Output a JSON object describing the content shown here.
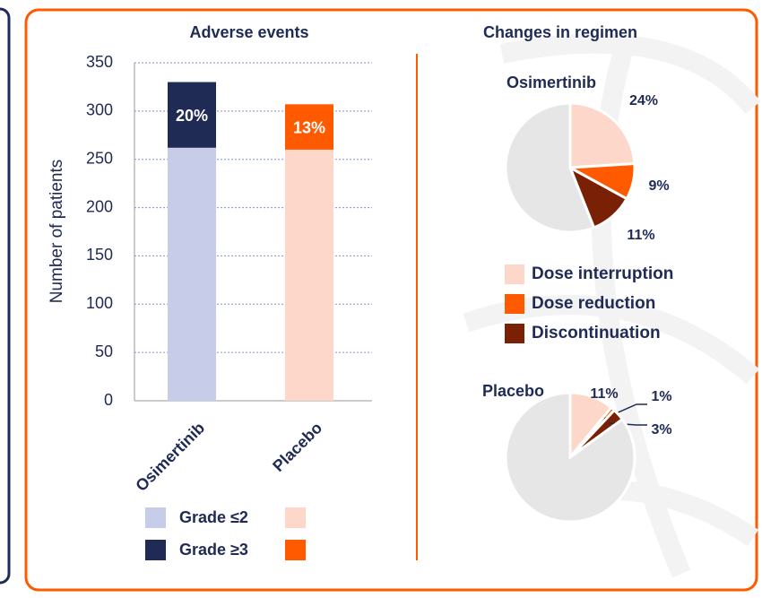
{
  "regimen_heading": "Changes in regimen",
  "chart_data": [
    {
      "type": "bar",
      "stacked": true,
      "title": "Adverse events",
      "y_label": "Number of patients",
      "categories": [
        "Osimertinib",
        "Placebo"
      ],
      "series": [
        {
          "name": "Grade ≤2",
          "colors": [
            "#c7cce8",
            "#fdd8ca"
          ],
          "values": [
            262,
            260
          ]
        },
        {
          "name": "Grade ≥3",
          "colors": [
            "#1f2a55",
            "#ff5a00"
          ],
          "values": [
            68,
            47
          ],
          "annotations": [
            "20%",
            "13%"
          ]
        }
      ],
      "ylim": [
        0,
        350
      ],
      "yticks": [
        0,
        50,
        100,
        150,
        200,
        250,
        300,
        350
      ],
      "grid": true
    },
    {
      "type": "pie",
      "title": "Osimertinib",
      "categories": [
        "Dose interruption",
        "Dose reduction",
        "Discontinuation",
        null
      ],
      "colors": [
        "#fdd8ca",
        "#ff5a00",
        "#7a2105",
        "#e6e6e6"
      ],
      "values": [
        24,
        9,
        11,
        56
      ],
      "value_labels": [
        "24%",
        "9%",
        "11%",
        null
      ]
    },
    {
      "type": "pie",
      "title": "Placebo",
      "categories": [
        "Dose interruption",
        "Dose reduction",
        "Discontinuation",
        null
      ],
      "colors": [
        "#fdd8ca",
        "#ff5a00",
        "#7a2105",
        "#e6e6e6"
      ],
      "values": [
        11,
        1,
        3,
        85
      ],
      "value_labels": [
        "11%",
        "1%",
        "3%",
        null
      ]
    }
  ]
}
